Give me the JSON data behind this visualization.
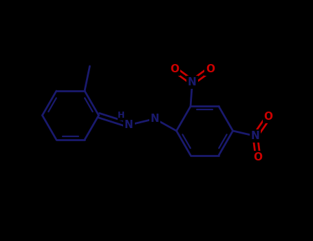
{
  "background_color": "#000000",
  "bond_color": "#1a1a6e",
  "N_color": "#1a1a6e",
  "O_color": "#cc0000",
  "line_width": 2.0,
  "font_size": 10,
  "fig_width": 4.55,
  "fig_height": 3.5,
  "dpi": 100,
  "xlim": [
    0,
    9.1
  ],
  "ylim": [
    0,
    7.0
  ]
}
